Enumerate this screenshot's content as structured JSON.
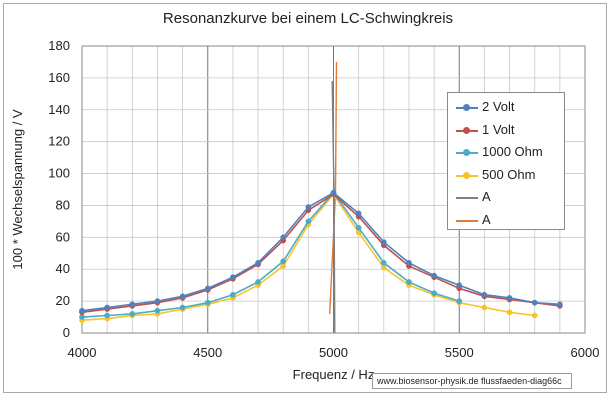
{
  "chart_data": {
    "type": "line",
    "title": "Resonanzkurve bei einem LC-Schwingkreis",
    "xlabel": "Frequenz / Hz",
    "ylabel": "100 * Wechselspannung / V",
    "xlim": [
      4000,
      6000
    ],
    "ylim": [
      0,
      180
    ],
    "x_ticks": [
      "4000",
      "4500",
      "5000",
      "5500",
      "6000"
    ],
    "y_ticks": [
      "0",
      "20",
      "40",
      "60",
      "80",
      "100",
      "120",
      "140",
      "160",
      "180"
    ],
    "grid": true,
    "legend_position": "right",
    "series": [
      {
        "name": "2 Volt",
        "color": "#4f81bd",
        "marker": true,
        "x": [
          4000,
          4100,
          4200,
          4300,
          4400,
          4500,
          4600,
          4700,
          4800,
          4900,
          5000,
          5100,
          5200,
          5300,
          5400,
          5500,
          5600,
          5700,
          5800,
          5900
        ],
        "y": [
          14,
          16,
          18,
          20,
          23,
          28,
          35,
          44,
          60,
          79,
          88,
          75,
          57,
          44,
          36,
          30,
          24,
          22,
          19,
          18
        ]
      },
      {
        "name": "1 Volt",
        "color": "#c0504d",
        "marker": true,
        "x": [
          4000,
          4100,
          4200,
          4300,
          4400,
          4500,
          4600,
          4700,
          4800,
          4900,
          5000,
          5100,
          5200,
          5300,
          5400,
          5500,
          5600,
          5700,
          5800,
          5900
        ],
        "y": [
          13,
          15,
          17,
          19,
          22,
          27,
          34,
          43,
          58,
          77,
          87,
          73,
          55,
          42,
          35,
          28,
          23,
          21,
          19,
          17
        ]
      },
      {
        "name": "1000 Ohm",
        "color": "#4bacc6",
        "marker": true,
        "x": [
          4000,
          4100,
          4200,
          4300,
          4400,
          4500,
          4600,
          4700,
          4800,
          4900,
          5000,
          5100,
          5200,
          5300,
          5400,
          5500
        ],
        "y": [
          10,
          11,
          12,
          14,
          16,
          19,
          24,
          32,
          45,
          70,
          88,
          66,
          44,
          32,
          25,
          20
        ]
      },
      {
        "name": "500 Ohm",
        "color": "#f8c32a",
        "marker": true,
        "x": [
          4000,
          4100,
          4200,
          4300,
          4400,
          4500,
          4600,
          4700,
          4800,
          4900,
          5000,
          5100,
          5200,
          5300,
          5400,
          5500,
          5600,
          5700,
          5800
        ],
        "y": [
          8,
          9,
          11,
          12,
          15,
          18,
          22,
          30,
          42,
          68,
          87,
          63,
          41,
          30,
          24,
          19,
          16,
          13,
          11
        ]
      },
      {
        "name": "A",
        "color": "#7f7f7f",
        "marker": false,
        "x": [
          4995,
          5002,
          5005
        ],
        "y": [
          158,
          88,
          0
        ]
      },
      {
        "name": "A",
        "color": "#e07b39",
        "marker": false,
        "x": [
          4985,
          5008,
          5012
        ],
        "y": [
          12,
          88,
          170
        ]
      }
    ]
  },
  "watermark": "www.biosensor-physik.de  flussfaeden-diag66c"
}
